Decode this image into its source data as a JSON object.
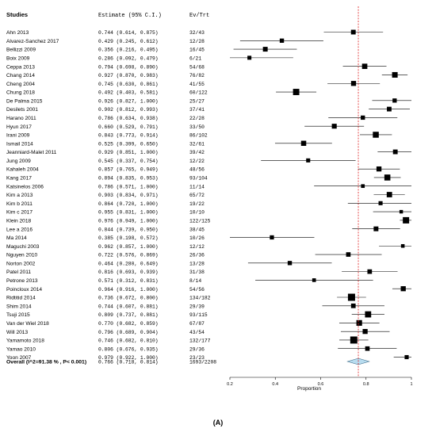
{
  "chart_data": {
    "type": "forest",
    "columns": {
      "studies": "Studies",
      "estimate": "Estimate (95% C.I.)",
      "events": "Ev/Trt"
    },
    "x_axis": {
      "label": "Proportion",
      "ticks": [
        "0.2",
        "0.4",
        "0.6",
        "0.8",
        "1"
      ],
      "range": [
        0.2,
        1.0
      ]
    },
    "reference_line": 0.766,
    "studies": [
      {
        "name": "Ahn 2013",
        "est": 0.744,
        "lo": 0.614,
        "hi": 0.875,
        "ci": "0.744 (0.614, 0.875)",
        "evtrt": "32/43",
        "n": 43
      },
      {
        "name": "Alvarez-Sanchez 2017",
        "est": 0.429,
        "lo": 0.245,
        "hi": 0.612,
        "ci": "0.429 (0.245, 0.612)",
        "evtrt": "12/28",
        "n": 28
      },
      {
        "name": "Bellizzi 2009",
        "est": 0.356,
        "lo": 0.216,
        "hi": 0.495,
        "ci": "0.356 (0.216, 0.495)",
        "evtrt": "16/45",
        "n": 45
      },
      {
        "name": "Boix 2009",
        "est": 0.286,
        "lo": 0.092,
        "hi": 0.479,
        "ci": "0.286 (0.092, 0.479)",
        "evtrt": "6/21",
        "n": 21
      },
      {
        "name": "Ceppa 2013",
        "est": 0.794,
        "lo": 0.698,
        "hi": 0.89,
        "ci": "0.794 (0.698, 0.890)",
        "evtrt": "54/68",
        "n": 68
      },
      {
        "name": "Chang 2014",
        "est": 0.927,
        "lo": 0.87,
        "hi": 0.983,
        "ci": "0.927 (0.870, 0.983)",
        "evtrt": "76/82",
        "n": 82
      },
      {
        "name": "Cheng 2004",
        "est": 0.745,
        "lo": 0.63,
        "hi": 0.861,
        "ci": "0.745 (0.630, 0.861)",
        "evtrt": "41/55",
        "n": 55
      },
      {
        "name": "Chung 2018",
        "est": 0.492,
        "lo": 0.403,
        "hi": 0.581,
        "ci": "0.492 (0.403, 0.581)",
        "evtrt": "60/122",
        "n": 122
      },
      {
        "name": "De Palma 2015",
        "est": 0.926,
        "lo": 0.827,
        "hi": 1.0,
        "ci": "0.926 (0.827, 1.000)",
        "evtrt": "25/27",
        "n": 27
      },
      {
        "name": "Desilets 2001",
        "est": 0.902,
        "lo": 0.812,
        "hi": 0.993,
        "ci": "0.902 (0.812, 0.993)",
        "evtrt": "37/41",
        "n": 41
      },
      {
        "name": "Harano 2011",
        "est": 0.786,
        "lo": 0.634,
        "hi": 0.938,
        "ci": "0.786 (0.634, 0.938)",
        "evtrt": "22/28",
        "n": 28
      },
      {
        "name": "Hyun 2017",
        "est": 0.66,
        "lo": 0.529,
        "hi": 0.791,
        "ci": "0.660 (0.529, 0.791)",
        "evtrt": "33/50",
        "n": 50
      },
      {
        "name": "Irani 2009",
        "est": 0.843,
        "lo": 0.773,
        "hi": 0.914,
        "ci": "0.843 (0.773, 0.914)",
        "evtrt": "86/102",
        "n": 102
      },
      {
        "name": "Ismail 2014",
        "est": 0.525,
        "lo": 0.399,
        "hi": 0.65,
        "ci": "0.525 (0.399, 0.650)",
        "evtrt": "32/61",
        "n": 61
      },
      {
        "name": "Jeanniard-Malet 2011",
        "est": 0.929,
        "lo": 0.851,
        "hi": 1.0,
        "ci": "0.929 (0.851, 1.000)",
        "evtrt": "39/42",
        "n": 42
      },
      {
        "name": "Jung 2009",
        "est": 0.545,
        "lo": 0.337,
        "hi": 0.754,
        "ci": "0.545 (0.337, 0.754)",
        "evtrt": "12/22",
        "n": 22
      },
      {
        "name": "Kahaleh 2004",
        "est": 0.857,
        "lo": 0.765,
        "hi": 0.949,
        "ci": "0.857 (0.765, 0.949)",
        "evtrt": "48/56",
        "n": 56
      },
      {
        "name": "Kang 2017",
        "est": 0.894,
        "lo": 0.835,
        "hi": 0.953,
        "ci": "0.894 (0.835, 0.953)",
        "evtrt": "93/104",
        "n": 104
      },
      {
        "name": "Katsinelos 2006",
        "est": 0.786,
        "lo": 0.571,
        "hi": 1.0,
        "ci": "0.786 (0.571, 1.000)",
        "evtrt": "11/14",
        "n": 14
      },
      {
        "name": "Kim a 2013",
        "est": 0.903,
        "lo": 0.834,
        "hi": 0.971,
        "ci": "0.903 (0.834, 0.971)",
        "evtrt": "65/72",
        "n": 72
      },
      {
        "name": "Kim b 2011",
        "est": 0.864,
        "lo": 0.72,
        "hi": 1.0,
        "ci": "0.864 (0.720, 1.000)",
        "evtrt": "19/22",
        "n": 22
      },
      {
        "name": "Kim c 2017",
        "est": 0.955,
        "lo": 0.831,
        "hi": 1.0,
        "ci": "0.955 (0.831, 1.000)",
        "evtrt": "10/10",
        "n": 10
      },
      {
        "name": "Klein 2018",
        "est": 0.976,
        "lo": 0.949,
        "hi": 1.0,
        "ci": "0.976 (0.949, 1.000)",
        "evtrt": "122/125",
        "n": 125
      },
      {
        "name": "Lee a 2016",
        "est": 0.844,
        "lo": 0.739,
        "hi": 0.95,
        "ci": "0.844 (0.739, 0.950)",
        "evtrt": "38/45",
        "n": 45
      },
      {
        "name": "Ma 2014",
        "est": 0.385,
        "lo": 0.198,
        "hi": 0.572,
        "ci": "0.385 (0.198, 0.572)",
        "evtrt": "10/26",
        "n": 26
      },
      {
        "name": "Maguchi 2003",
        "est": 0.962,
        "lo": 0.857,
        "hi": 1.0,
        "ci": "0.962 (0.857, 1.000)",
        "evtrt": "12/12",
        "n": 12
      },
      {
        "name": "Nguyen 2010",
        "est": 0.722,
        "lo": 0.576,
        "hi": 0.869,
        "ci": "0.722 (0.576, 0.869)",
        "evtrt": "26/36",
        "n": 36
      },
      {
        "name": "Norton 2002",
        "est": 0.464,
        "lo": 0.28,
        "hi": 0.649,
        "ci": "0.464 (0.280, 0.649)",
        "evtrt": "13/28",
        "n": 28
      },
      {
        "name": "Patel 2011",
        "est": 0.816,
        "lo": 0.693,
        "hi": 0.939,
        "ci": "0.816 (0.693, 0.939)",
        "evtrt": "31/38",
        "n": 38
      },
      {
        "name": "Petrone 2013",
        "est": 0.571,
        "lo": 0.312,
        "hi": 0.831,
        "ci": "0.571 (0.312, 0.831)",
        "evtrt": "8/14",
        "n": 14
      },
      {
        "name": "Poincloux 2014",
        "est": 0.964,
        "lo": 0.916,
        "hi": 1.0,
        "ci": "0.964 (0.916, 1.000)",
        "evtrt": "54/56",
        "n": 56
      },
      {
        "name": "Ridtitid 2014",
        "est": 0.736,
        "lo": 0.672,
        "hi": 0.8,
        "ci": "0.736 (0.672, 0.800)",
        "evtrt": "134/182",
        "n": 182
      },
      {
        "name": "Shim 2014",
        "est": 0.744,
        "lo": 0.607,
        "hi": 0.881,
        "ci": "0.744 (0.607, 0.881)",
        "evtrt": "29/39",
        "n": 39
      },
      {
        "name": "Tsuji 2015",
        "est": 0.809,
        "lo": 0.737,
        "hi": 0.881,
        "ci": "0.809 (0.737, 0.881)",
        "evtrt": "93/115",
        "n": 115
      },
      {
        "name": "Van der Wiel 2018",
        "est": 0.77,
        "lo": 0.682,
        "hi": 0.859,
        "ci": "0.770 (0.682, 0.859)",
        "evtrt": "67/87",
        "n": 87
      },
      {
        "name": "Will 2013",
        "est": 0.796,
        "lo": 0.689,
        "hi": 0.904,
        "ci": "0.796 (0.689, 0.904)",
        "evtrt": "43/54",
        "n": 54
      },
      {
        "name": "Yamamoto 2018",
        "est": 0.746,
        "lo": 0.682,
        "hi": 0.81,
        "ci": "0.746 (0.682, 0.810)",
        "evtrt": "132/177",
        "n": 177
      },
      {
        "name": "Yamao 2010",
        "est": 0.806,
        "lo": 0.676,
        "hi": 0.935,
        "ci": "0.806 (0.676, 0.935)",
        "evtrt": "29/36",
        "n": 36
      },
      {
        "name": "Yoon 2007",
        "est": 0.979,
        "lo": 0.922,
        "hi": 1.0,
        "ci": "0.979 (0.922, 1.000)",
        "evtrt": "23/23",
        "n": 23
      }
    ],
    "overall": {
      "label": "Overall (I^2=91.38 % , P< 0.001)",
      "est": 0.766,
      "lo": 0.718,
      "hi": 0.814,
      "ci": "0.766 (0.718, 0.814)",
      "evtrt": "1693/2208"
    },
    "caption": "(A)",
    "colors": {
      "reference": "#e02020",
      "diamond_fill": "#b8dcef",
      "diamond_stroke": "#3a6a86",
      "marker": "#000000",
      "ci": "#000000"
    }
  }
}
